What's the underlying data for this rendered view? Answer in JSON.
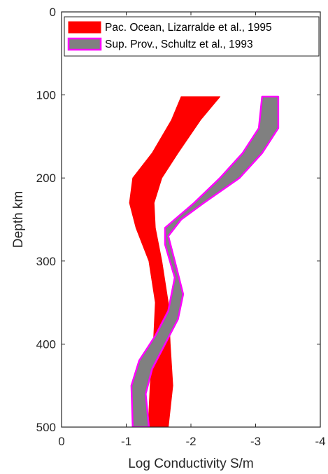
{
  "chart_data": {
    "type": "area",
    "xlabel": "Log Conductivity S/m",
    "ylabel": "Depth km",
    "xlim": [
      0,
      -4
    ],
    "ylim": [
      0,
      500
    ],
    "y_reversed": true,
    "x_reversed": true,
    "xticks": [
      0,
      -1,
      -2,
      -3,
      -4
    ],
    "xtick_labels": [
      "0",
      "-1",
      "-2",
      "-3",
      "-4"
    ],
    "yticks": [
      0,
      100,
      200,
      300,
      400,
      500
    ],
    "ytick_labels": [
      "0",
      "100",
      "200",
      "300",
      "400",
      "500"
    ],
    "grid": false,
    "legend_position": "top-left",
    "series": [
      {
        "name": "Pac. Ocean, Lizarralde et al., 1995",
        "fill": "#ff0000",
        "edge": "#ff0000",
        "left_edge": [
          [
            102,
            -1.85
          ],
          [
            130,
            -1.7
          ],
          [
            170,
            -1.4
          ],
          [
            200,
            -1.1
          ],
          [
            230,
            -1.05
          ],
          [
            260,
            -1.15
          ],
          [
            300,
            -1.35
          ],
          [
            350,
            -1.45
          ],
          [
            400,
            -1.42
          ],
          [
            450,
            -1.37
          ],
          [
            500,
            -1.34
          ]
        ],
        "right_edge": [
          [
            102,
            -2.45
          ],
          [
            130,
            -2.15
          ],
          [
            170,
            -1.8
          ],
          [
            200,
            -1.55
          ],
          [
            230,
            -1.43
          ],
          [
            260,
            -1.45
          ],
          [
            300,
            -1.55
          ],
          [
            350,
            -1.65
          ],
          [
            400,
            -1.68
          ],
          [
            450,
            -1.72
          ],
          [
            500,
            -1.65
          ]
        ]
      },
      {
        "name": "Sup. Prov., Schultz et al., 1993",
        "fill": "#808080",
        "edge": "#ff00ff",
        "left_edge": [
          [
            102,
            -3.1
          ],
          [
            140,
            -3.05
          ],
          [
            170,
            -2.8
          ],
          [
            200,
            -2.45
          ],
          [
            230,
            -2.05
          ],
          [
            260,
            -1.6
          ],
          [
            280,
            -1.6
          ],
          [
            320,
            -1.75
          ],
          [
            360,
            -1.65
          ],
          [
            390,
            -1.45
          ],
          [
            420,
            -1.2
          ],
          [
            450,
            -1.08
          ],
          [
            500,
            -1.1
          ]
        ],
        "right_edge": [
          [
            102,
            -3.35
          ],
          [
            140,
            -3.35
          ],
          [
            170,
            -3.1
          ],
          [
            200,
            -2.75
          ],
          [
            230,
            -2.2
          ],
          [
            250,
            -1.85
          ],
          [
            270,
            -1.65
          ],
          [
            300,
            -1.75
          ],
          [
            340,
            -1.88
          ],
          [
            370,
            -1.8
          ],
          [
            400,
            -1.6
          ],
          [
            430,
            -1.4
          ],
          [
            460,
            -1.3
          ],
          [
            500,
            -1.35
          ]
        ]
      }
    ]
  }
}
